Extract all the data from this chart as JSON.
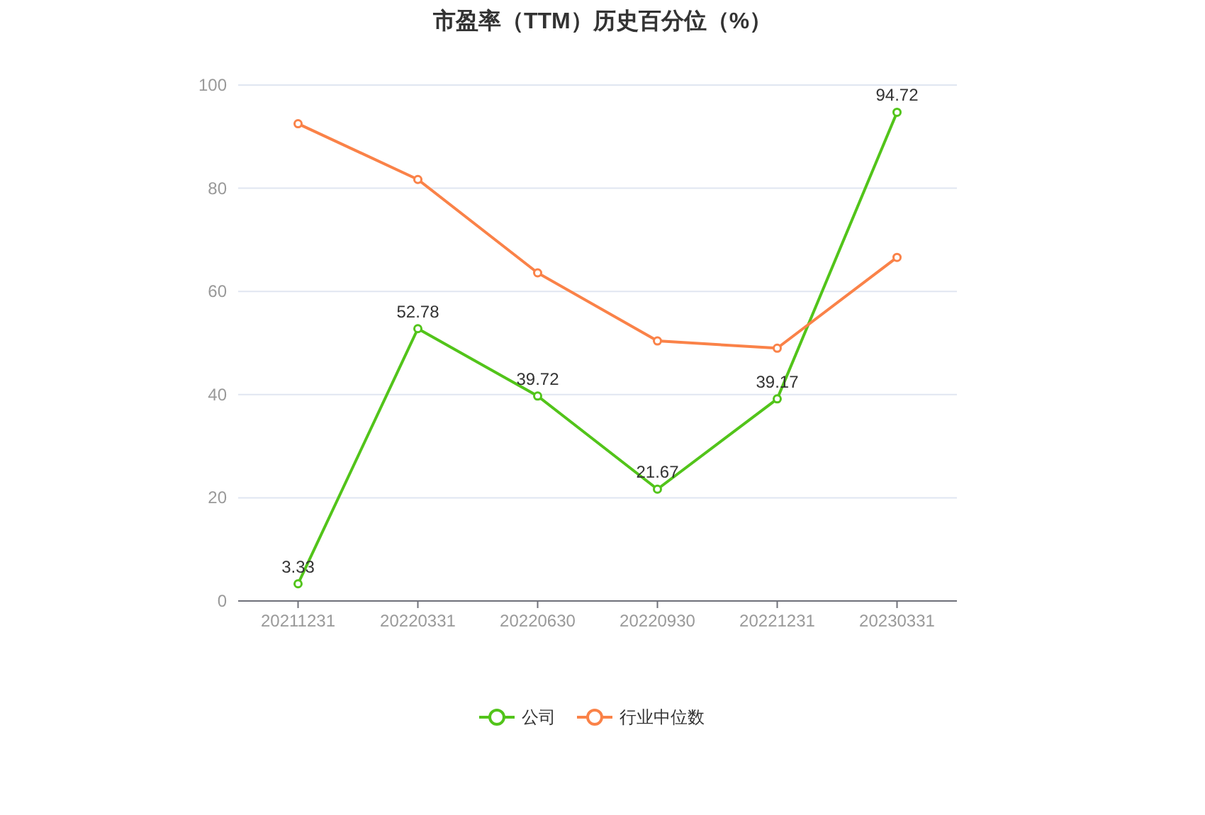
{
  "chart_data": {
    "type": "line",
    "title": "市盈率（TTM）历史百分位（%）",
    "categories": [
      "20211231",
      "20220331",
      "20220630",
      "20220930",
      "20221231",
      "20230331"
    ],
    "series": [
      {
        "name": "公司",
        "color": "#52c41a",
        "values": [
          3.33,
          52.78,
          39.72,
          21.67,
          39.17,
          94.72
        ],
        "value_labels": [
          "3.33",
          "52.78",
          "39.72",
          "21.67",
          "39.17",
          "94.72"
        ]
      },
      {
        "name": "行业中位数",
        "color": "#fa8248",
        "values": [
          92.5,
          81.7,
          63.6,
          50.4,
          49.0,
          66.6
        ]
      }
    ],
    "ylim": [
      0,
      100
    ],
    "yticks": [
      0,
      20,
      40,
      60,
      80,
      100
    ],
    "grid": "y",
    "legend": "bottom",
    "marker": "circle"
  }
}
